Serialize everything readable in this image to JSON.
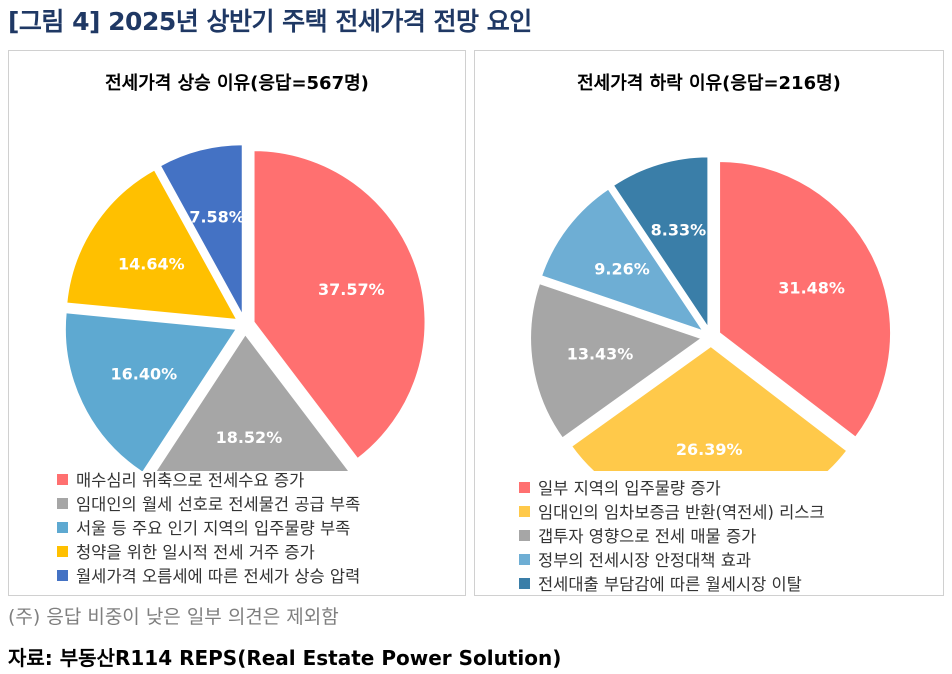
{
  "figure_title": "[그림 4] 2025년 상반기 주택 전세가격 전망 요인",
  "note": "(주) 응답 비중이 낮은 일부 의견은 제외함",
  "source": "자료: 부동산R114 REPS(Real Estate Power Solution)",
  "chart_data": [
    {
      "type": "pie",
      "title": "전세가격 상승 이유(응답=567명)",
      "legend_position": "bottom",
      "categories": [
        "매수심리 위축으로 전세수요 증가",
        "임대인의 월세 선호로 전세물건 공급 부족",
        "서울 등 주요 인기 지역의 입주물량 부족",
        "청약을 위한 일시적 전세 거주 증가",
        "월세가격 오름세에 따른 전세가 상승 압력"
      ],
      "values": [
        37.57,
        18.52,
        16.4,
        14.64,
        7.58
      ],
      "labels": [
        "37.57%",
        "18.52%",
        "16.40%",
        "14.64%",
        "7.58%"
      ],
      "colors": [
        "#ff7070",
        "#a6a6a6",
        "#5ea9d1",
        "#ffc000",
        "#4472c4"
      ]
    },
    {
      "type": "pie",
      "title": "전세가격 하락 이유(응답=216명)",
      "legend_position": "bottom",
      "categories": [
        "일부 지역의 입주물량 증가",
        "임대인의 임차보증금 반환(역전세) 리스크",
        "갭투자 영향으로 전세 매물 증가",
        "정부의 전세시장 안정대책 효과",
        "전세대출 부담감에 따른 월세시장 이탈"
      ],
      "values": [
        31.48,
        26.39,
        13.43,
        9.26,
        8.33
      ],
      "labels": [
        "31.48%",
        "26.39%",
        "13.43%",
        "9.26%",
        "8.33%"
      ],
      "colors": [
        "#ff7070",
        "#ffc94a",
        "#a6a6a6",
        "#6eaed4",
        "#3a7ea8"
      ]
    }
  ]
}
